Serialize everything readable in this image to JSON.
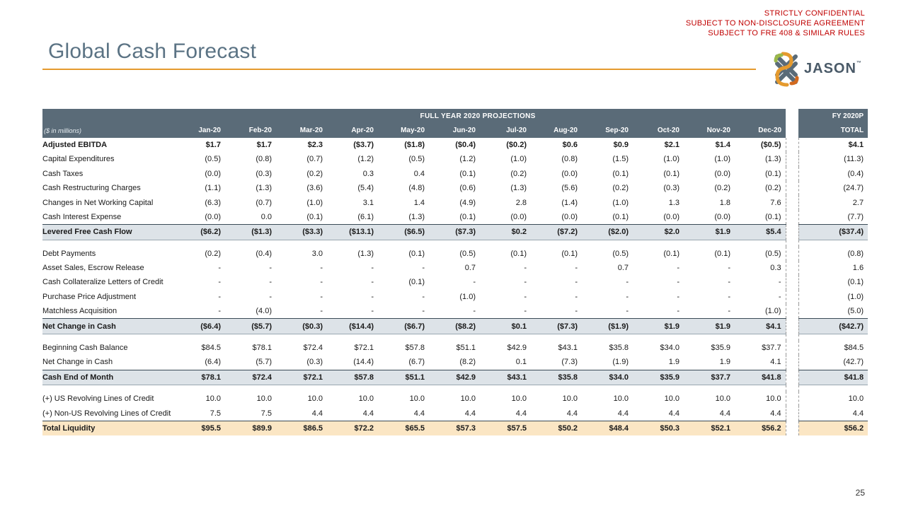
{
  "confidential": [
    "STRICTLY CONFIDENTIAL",
    "SUBJECT TO NON-DISCLOSURE AGREEMENT",
    "SUBJECT TO FRE 408 & SIMILAR RULES"
  ],
  "title": "Global Cash Forecast",
  "logo": {
    "text": "JASON",
    "tm": "™"
  },
  "table": {
    "group_header": "FULL YEAR 2020 PROJECTIONS",
    "fy_header": "FY 2020P",
    "unit_label": "($ in millions)",
    "total_label": "TOTAL",
    "months": [
      "Jan-20",
      "Feb-20",
      "Mar-20",
      "Apr-20",
      "May-20",
      "Jun-20",
      "Jul-20",
      "Aug-20",
      "Sep-20",
      "Oct-20",
      "Nov-20",
      "Dec-20"
    ],
    "rows": [
      {
        "label": "Adjusted EBITDA",
        "values": [
          "$1.7",
          "$1.7",
          "$2.3",
          "($3.7)",
          "($1.8)",
          "($0.4)",
          "($0.2)",
          "$0.6",
          "$0.9",
          "$2.1",
          "$1.4",
          "($0.5)"
        ],
        "total": "$4.1"
      },
      {
        "label": "Capital Expenditures",
        "values": [
          "(0.5)",
          "(0.8)",
          "(0.7)",
          "(1.2)",
          "(0.5)",
          "(1.2)",
          "(1.0)",
          "(0.8)",
          "(1.5)",
          "(1.0)",
          "(1.0)",
          "(1.3)"
        ],
        "total": "(11.3)"
      },
      {
        "label": "Cash Taxes",
        "values": [
          "(0.0)",
          "(0.3)",
          "(0.2)",
          "0.3",
          "0.4",
          "(0.1)",
          "(0.2)",
          "(0.0)",
          "(0.1)",
          "(0.1)",
          "(0.0)",
          "(0.1)"
        ],
        "total": "(0.4)"
      },
      {
        "label": "Cash Restructuring Charges",
        "values": [
          "(1.1)",
          "(1.3)",
          "(3.6)",
          "(5.4)",
          "(4.8)",
          "(0.6)",
          "(1.3)",
          "(5.6)",
          "(0.2)",
          "(0.3)",
          "(0.2)",
          "(0.2)"
        ],
        "total": "(24.7)"
      },
      {
        "label": "Changes in Net Working Capital",
        "values": [
          "(6.3)",
          "(0.7)",
          "(1.0)",
          "3.1",
          "1.4",
          "(4.9)",
          "2.8",
          "(1.4)",
          "(1.0)",
          "1.3",
          "1.8",
          "7.6"
        ],
        "total": "2.7"
      },
      {
        "label": "Cash Interest Expense",
        "values": [
          "(0.0)",
          "0.0",
          "(0.1)",
          "(6.1)",
          "(1.3)",
          "(0.1)",
          "(0.0)",
          "(0.0)",
          "(0.1)",
          "(0.0)",
          "(0.0)",
          "(0.1)"
        ],
        "total": "(7.7)"
      },
      {
        "label": "Levered Free Cash Flow",
        "values": [
          "($6.2)",
          "($1.3)",
          "($3.3)",
          "($13.1)",
          "($6.5)",
          "($7.3)",
          "$0.2",
          "($7.2)",
          "($2.0)",
          "$2.0",
          "$1.9",
          "$5.4"
        ],
        "total": "($37.4)"
      },
      {
        "label": "Debt Payments",
        "values": [
          "(0.2)",
          "(0.4)",
          "3.0",
          "(1.3)",
          "(0.1)",
          "(0.5)",
          "(0.1)",
          "(0.1)",
          "(0.5)",
          "(0.1)",
          "(0.1)",
          "(0.5)"
        ],
        "total": "(0.8)"
      },
      {
        "label": "Asset Sales, Escrow Release",
        "values": [
          "-",
          "-",
          "-",
          "-",
          "-",
          "0.7",
          "-",
          "-",
          "0.7",
          "-",
          "-",
          "0.3"
        ],
        "total": "1.6"
      },
      {
        "label": "Cash Collateralize Letters of Credit",
        "values": [
          "-",
          "-",
          "-",
          "-",
          "(0.1)",
          "-",
          "-",
          "-",
          "-",
          "-",
          "-",
          "-"
        ],
        "total": "(0.1)"
      },
      {
        "label": "Purchase Price Adjustment",
        "values": [
          "-",
          "-",
          "-",
          "-",
          "-",
          "(1.0)",
          "-",
          "-",
          "-",
          "-",
          "-",
          "-"
        ],
        "total": "(1.0)"
      },
      {
        "label": "Matchless Acquisition",
        "values": [
          "-",
          "(4.0)",
          "-",
          "-",
          "-",
          "-",
          "-",
          "-",
          "-",
          "-",
          "-",
          "(1.0)"
        ],
        "total": "(5.0)"
      },
      {
        "label": "Net Change in Cash",
        "values": [
          "($6.4)",
          "($5.7)",
          "($0.3)",
          "($14.4)",
          "($6.7)",
          "($8.2)",
          "$0.1",
          "($7.3)",
          "($1.9)",
          "$1.9",
          "$1.9",
          "$4.1"
        ],
        "total": "($42.7)"
      },
      {
        "label": "Beginning Cash Balance",
        "values": [
          "$84.5",
          "$78.1",
          "$72.4",
          "$72.1",
          "$57.8",
          "$51.1",
          "$42.9",
          "$43.1",
          "$35.8",
          "$34.0",
          "$35.9",
          "$37.7"
        ],
        "total": "$84.5"
      },
      {
        "label": "Net Change in Cash",
        "values": [
          "(6.4)",
          "(5.7)",
          "(0.3)",
          "(14.4)",
          "(6.7)",
          "(8.2)",
          "0.1",
          "(7.3)",
          "(1.9)",
          "1.9",
          "1.9",
          "4.1"
        ],
        "total": "(42.7)"
      },
      {
        "label": "Cash End of Month",
        "values": [
          "$78.1",
          "$72.4",
          "$72.1",
          "$57.8",
          "$51.1",
          "$42.9",
          "$43.1",
          "$35.8",
          "$34.0",
          "$35.9",
          "$37.7",
          "$41.8"
        ],
        "total": "$41.8"
      },
      {
        "label": "(+) US Revolving Lines of Credit",
        "values": [
          "10.0",
          "10.0",
          "10.0",
          "10.0",
          "10.0",
          "10.0",
          "10.0",
          "10.0",
          "10.0",
          "10.0",
          "10.0",
          "10.0"
        ],
        "total": "10.0"
      },
      {
        "label": "(+) Non-US Revolving Lines of Credit",
        "values": [
          "7.5",
          "7.5",
          "4.4",
          "4.4",
          "4.4",
          "4.4",
          "4.4",
          "4.4",
          "4.4",
          "4.4",
          "4.4",
          "4.4"
        ],
        "total": "4.4"
      },
      {
        "label": "Total Liquidity",
        "values": [
          "$95.5",
          "$89.9",
          "$86.5",
          "$72.2",
          "$65.5",
          "$57.3",
          "$57.5",
          "$50.2",
          "$48.4",
          "$50.3",
          "$52.1",
          "$56.2"
        ],
        "total": "$56.2"
      }
    ]
  },
  "page_number": "25"
}
